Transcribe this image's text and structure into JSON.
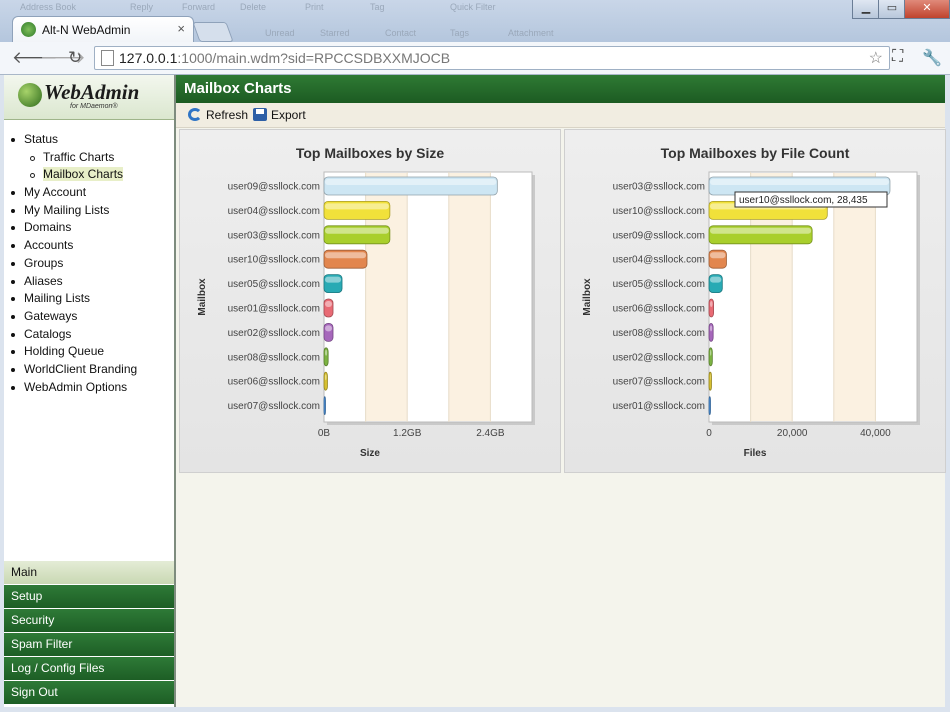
{
  "browser": {
    "tab_title": "Alt-N WebAdmin",
    "tab_close": "×",
    "url_host": "127.0.0.1",
    "url_rest": ":1000/main.wdm?sid=RPCCSDBXXMJOCB",
    "back_icon": "back-arrow-icon",
    "forward_icon": "forward-arrow-icon",
    "reload_icon": "reload-icon",
    "star_icon": "bookmark-star-icon",
    "wrench_icon": "wrench-icon",
    "background_menu": [
      "Address Book",
      "Reply",
      "Forward",
      "Delete",
      "Print",
      "Tag",
      "Quick Filter",
      "Unread",
      "Starred",
      "Contact",
      "Tags",
      "Attachment"
    ]
  },
  "logo": {
    "name": "WebAdmin",
    "sub": "for MDaemon®"
  },
  "sidebar": {
    "tree": [
      {
        "label": "Status",
        "level": 0,
        "selected": false
      },
      {
        "label": "Traffic Charts",
        "level": 1,
        "selected": false
      },
      {
        "label": "Mailbox Charts",
        "level": 1,
        "selected": true
      },
      {
        "label": "My Account",
        "level": 0,
        "selected": false
      },
      {
        "label": "My Mailing Lists",
        "level": 0,
        "selected": false
      },
      {
        "label": "Domains",
        "level": 0,
        "selected": false
      },
      {
        "label": "Accounts",
        "level": 0,
        "selected": false
      },
      {
        "label": "Groups",
        "level": 0,
        "selected": false
      },
      {
        "label": "Aliases",
        "level": 0,
        "selected": false
      },
      {
        "label": "Mailing Lists",
        "level": 0,
        "selected": false
      },
      {
        "label": "Gateways",
        "level": 0,
        "selected": false
      },
      {
        "label": "Catalogs",
        "level": 0,
        "selected": false
      },
      {
        "label": "Holding Queue",
        "level": 0,
        "selected": false
      },
      {
        "label": "WorldClient Branding",
        "level": 0,
        "selected": false
      },
      {
        "label": "WebAdmin Options",
        "level": 0,
        "selected": false
      }
    ],
    "menu": [
      {
        "label": "Main",
        "active": true
      },
      {
        "label": "Setup",
        "active": false
      },
      {
        "label": "Security",
        "active": false
      },
      {
        "label": "Spam Filter",
        "active": false
      },
      {
        "label": "Log / Config Files",
        "active": false
      },
      {
        "label": "Sign Out",
        "active": false
      }
    ]
  },
  "page": {
    "title": "Mailbox Charts",
    "refresh_label": "Refresh",
    "export_label": "Export"
  },
  "colors": {
    "header_green": "#1f6128",
    "bar_palette": [
      "#cde6f3",
      "#f1e13a",
      "#a9cf2c",
      "#e2864e",
      "#28aab4",
      "#e86a74",
      "#a667bb",
      "#7cb342",
      "#d6c030",
      "#4a90d9"
    ]
  },
  "chart_data": [
    {
      "type": "bar",
      "orientation": "horizontal",
      "title": "Top Mailboxes by Size",
      "xlabel": "Size",
      "ylabel": "Mailbox",
      "categories": [
        "user09@ssllock.com",
        "user04@ssllock.com",
        "user03@ssllock.com",
        "user10@ssllock.com",
        "user05@ssllock.com",
        "user01@ssllock.com",
        "user02@ssllock.com",
        "user08@ssllock.com",
        "user06@ssllock.com",
        "user07@ssllock.com"
      ],
      "values": [
        2.5,
        0.95,
        0.95,
        0.62,
        0.26,
        0.13,
        0.13,
        0.06,
        0.05,
        0.02
      ],
      "value_unit": "GB",
      "xlim": [
        0,
        3.0
      ],
      "ticks": [
        0,
        1.2,
        2.4
      ],
      "tick_labels": [
        "0B",
        "1.2GB",
        "2.4GB"
      ],
      "grid": "alternating bands"
    },
    {
      "type": "bar",
      "orientation": "horizontal",
      "title": "Top Mailboxes by File Count",
      "xlabel": "Files",
      "ylabel": "Mailbox",
      "categories": [
        "user03@ssllock.com",
        "user10@ssllock.com",
        "user09@ssllock.com",
        "user04@ssllock.com",
        "user05@ssllock.com",
        "user06@ssllock.com",
        "user08@ssllock.com",
        "user02@ssllock.com",
        "user07@ssllock.com",
        "user01@ssllock.com"
      ],
      "values": [
        43500,
        28435,
        24800,
        4200,
        3200,
        1100,
        1000,
        800,
        600,
        300
      ],
      "xlim": [
        0,
        50000
      ],
      "ticks": [
        0,
        20000,
        40000
      ],
      "tick_labels": [
        "0",
        "20,000",
        "40,000"
      ],
      "tooltip": "user10@ssllock.com, 28,435",
      "grid": "alternating bands"
    }
  ]
}
